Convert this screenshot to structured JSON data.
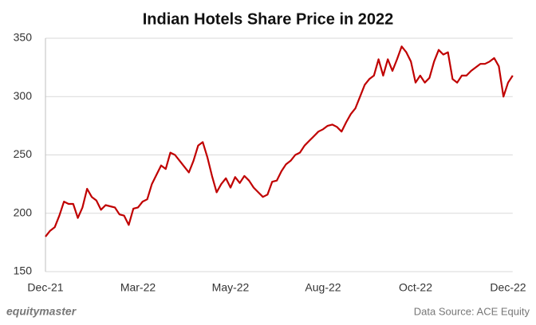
{
  "chart_data": {
    "type": "line",
    "title": "Indian Hotels Share Price in 2022",
    "categories": [
      "Dec-21",
      null,
      null,
      null,
      null,
      null,
      null,
      null,
      null,
      null,
      null,
      null,
      null,
      null,
      null,
      null,
      null,
      null,
      null,
      null,
      "Mar-22",
      null,
      null,
      null,
      null,
      null,
      null,
      null,
      null,
      null,
      null,
      null,
      null,
      null,
      null,
      null,
      null,
      null,
      null,
      null,
      "May-22",
      null,
      null,
      null,
      null,
      null,
      null,
      null,
      null,
      null,
      null,
      null,
      null,
      null,
      null,
      null,
      null,
      null,
      null,
      null,
      "Aug-22",
      null,
      null,
      null,
      null,
      null,
      null,
      null,
      null,
      null,
      null,
      null,
      null,
      null,
      null,
      null,
      null,
      null,
      null,
      null,
      "Oct-22",
      null,
      null,
      null,
      null,
      null,
      null,
      null,
      null,
      null,
      null,
      null,
      null,
      null,
      null,
      null,
      null,
      null,
      null,
      null,
      "Dec-22",
      null
    ],
    "values": [
      180,
      185,
      188,
      198,
      210,
      208,
      208,
      196,
      205,
      221,
      214,
      211,
      203,
      207,
      206,
      205,
      199,
      198,
      190,
      204,
      205,
      210,
      212,
      225,
      233,
      241,
      238,
      252,
      250,
      245,
      240,
      235,
      245,
      258,
      261,
      248,
      232,
      218,
      225,
      230,
      222,
      231,
      226,
      232,
      228,
      222,
      218,
      214,
      216,
      227,
      228,
      236,
      242,
      245,
      250,
      252,
      258,
      262,
      266,
      270,
      272,
      275,
      276,
      274,
      270,
      278,
      285,
      290,
      300,
      310,
      315,
      318,
      332,
      318,
      332,
      322,
      332,
      343,
      338,
      330,
      312,
      318,
      312,
      316,
      330,
      340,
      336,
      338,
      315,
      312,
      318,
      318,
      322,
      325,
      328,
      328,
      330,
      333,
      326,
      300,
      312,
      318
    ],
    "color": "#c00000",
    "ylim": [
      150,
      350
    ],
    "yticks": [
      150,
      200,
      250,
      300,
      350
    ],
    "grid": true,
    "brand": "equitymaster",
    "source": "Data Source: ACE Equity"
  }
}
